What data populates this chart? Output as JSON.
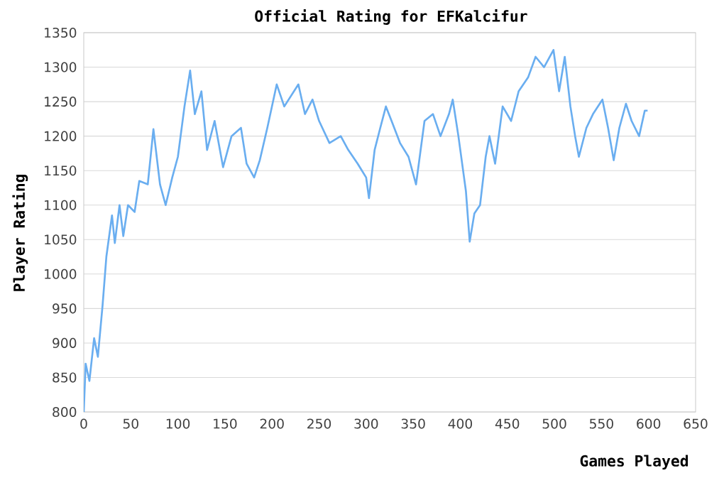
{
  "chart_data": {
    "type": "line",
    "title": "Official Rating for EFKalcifur",
    "xlabel": "Games Played",
    "ylabel": "Player Rating",
    "x": [
      0,
      2,
      6,
      11,
      15,
      20,
      24,
      30,
      33,
      38,
      42,
      47,
      54,
      59,
      68,
      74,
      81,
      87,
      94,
      100,
      107,
      113,
      118,
      125,
      131,
      139,
      148,
      157,
      167,
      173,
      181,
      187,
      195,
      205,
      213,
      228,
      235,
      243,
      250,
      261,
      273,
      281,
      291,
      300,
      303,
      309,
      315,
      321,
      327,
      336,
      345,
      353,
      362,
      371,
      379,
      388,
      392,
      398,
      406,
      410,
      415,
      421,
      427,
      431,
      437,
      445,
      454,
      462,
      472,
      480,
      489,
      499,
      505,
      511,
      517,
      522,
      526,
      534,
      541,
      551,
      557,
      563,
      569,
      576,
      582,
      590,
      596,
      599
    ],
    "series": [
      {
        "color": "#6aaef0",
        "values": [
          800,
          870,
          845,
          907,
          880,
          955,
          1025,
          1085,
          1045,
          1100,
          1055,
          1100,
          1090,
          1135,
          1130,
          1210,
          1130,
          1100,
          1140,
          1170,
          1243,
          1295,
          1232,
          1265,
          1180,
          1222,
          1155,
          1200,
          1212,
          1160,
          1140,
          1165,
          1212,
          1275,
          1243,
          1275,
          1232,
          1253,
          1222,
          1190,
          1200,
          1180,
          1160,
          1140,
          1110,
          1180,
          1212,
          1243,
          1222,
          1190,
          1170,
          1130,
          1222,
          1232,
          1200,
          1232,
          1253,
          1200,
          1120,
          1047,
          1088,
          1100,
          1170,
          1200,
          1160,
          1243,
          1222,
          1265,
          1285,
          1315,
          1300,
          1325,
          1265,
          1315,
          1243,
          1200,
          1170,
          1212,
          1232,
          1253,
          1212,
          1165,
          1212,
          1247,
          1222,
          1200,
          1237,
          1237
        ]
      }
    ],
    "xlim": [
      0,
      650
    ],
    "xticks": [
      0,
      50,
      100,
      150,
      200,
      250,
      300,
      350,
      400,
      450,
      500,
      550,
      600,
      650
    ],
    "ylim": [
      800,
      1350
    ],
    "yticks": [
      800,
      850,
      900,
      950,
      1000,
      1050,
      1100,
      1150,
      1200,
      1250,
      1300,
      1350
    ],
    "grid": "y",
    "marker": "none",
    "line_style": "solid"
  }
}
